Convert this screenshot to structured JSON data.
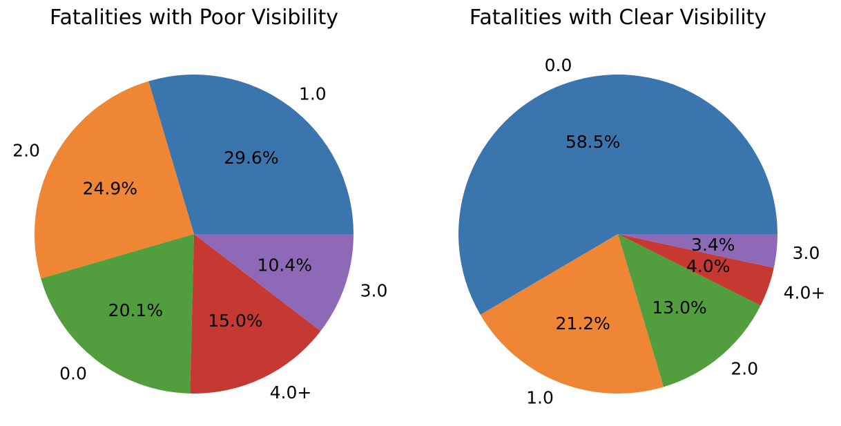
{
  "chart_data": [
    {
      "type": "pie",
      "title": "Fatalities with Poor Visibility",
      "categories": [
        "1.0",
        "2.0",
        "0.0",
        "4.0+",
        "3.0"
      ],
      "values": [
        29.6,
        24.9,
        20.1,
        15.0,
        10.4
      ],
      "percent_labels": [
        "29.6%",
        "24.9%",
        "20.1%",
        "15.0%",
        "10.4%"
      ],
      "colors": [
        "#3a75ae",
        "#ee8636",
        "#529e3e",
        "#c53932",
        "#8d69b8"
      ]
    },
    {
      "type": "pie",
      "title": "Fatalities with Clear Visibility",
      "categories": [
        "0.0",
        "1.0",
        "2.0",
        "4.0+",
        "3.0"
      ],
      "values": [
        58.5,
        21.2,
        13.0,
        4.0,
        3.4
      ],
      "percent_labels": [
        "58.5%",
        "21.2%",
        "13.0%",
        "4.0%",
        "3.4%"
      ],
      "colors": [
        "#3a75ae",
        "#ee8636",
        "#529e3e",
        "#c53932",
        "#8d69b8"
      ]
    }
  ]
}
